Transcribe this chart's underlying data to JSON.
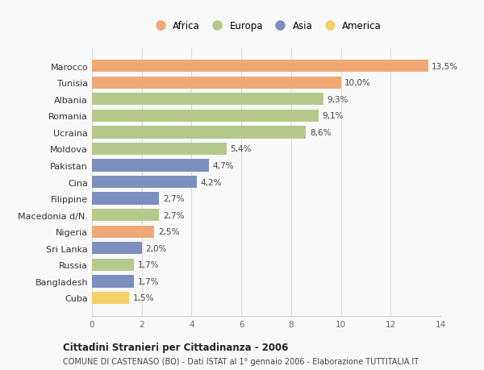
{
  "categories": [
    "Marocco",
    "Tunisia",
    "Albania",
    "Romania",
    "Ucraina",
    "Moldova",
    "Pakistan",
    "Cina",
    "Filippine",
    "Macedonia d/N.",
    "Nigeria",
    "Sri Lanka",
    "Russia",
    "Bangladesh",
    "Cuba"
  ],
  "values": [
    13.5,
    10.0,
    9.3,
    9.1,
    8.6,
    5.4,
    4.7,
    4.2,
    2.7,
    2.7,
    2.5,
    2.0,
    1.7,
    1.7,
    1.5
  ],
  "labels": [
    "13,5%",
    "10,0%",
    "9,3%",
    "9,1%",
    "8,6%",
    "5,4%",
    "4,7%",
    "4,2%",
    "2,7%",
    "2,7%",
    "2,5%",
    "2,0%",
    "1,7%",
    "1,7%",
    "1,5%"
  ],
  "continents": [
    "Africa",
    "Africa",
    "Europa",
    "Europa",
    "Europa",
    "Europa",
    "Asia",
    "Asia",
    "Asia",
    "Europa",
    "Africa",
    "Asia",
    "Europa",
    "Asia",
    "America"
  ],
  "colors": {
    "Africa": "#F0A875",
    "Europa": "#B5C98A",
    "Asia": "#7B8FC0",
    "America": "#F5D06A"
  },
  "legend_order": [
    "Africa",
    "Europa",
    "Asia",
    "America"
  ],
  "xlim": [
    0,
    14
  ],
  "xticks": [
    0,
    2,
    4,
    6,
    8,
    10,
    12,
    14
  ],
  "title": "Cittadini Stranieri per Cittadinanza - 2006",
  "subtitle": "COMUNE DI CASTENASO (BO) - Dati ISTAT al 1° gennaio 2006 - Elaborazione TUTTITALIA.IT",
  "background_color": "#f9f9f9",
  "bar_height": 0.75,
  "grid_color": "#dddddd"
}
